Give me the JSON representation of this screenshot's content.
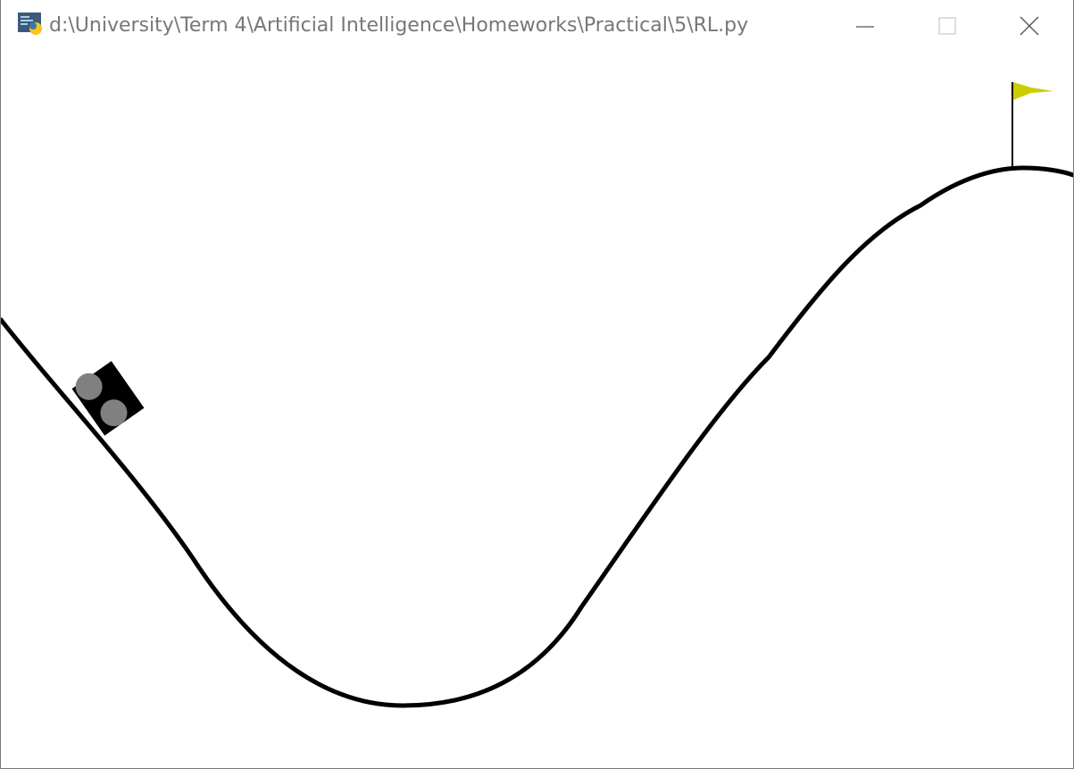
{
  "window": {
    "title": "d:\\University\\Term 4\\Artificial Intelligence\\Homeworks\\Practical\\5\\RL.py",
    "app_icon": "python-icon",
    "controls": {
      "minimize_icon": "minimize-icon",
      "maximize_icon": "maximize-icon",
      "close_icon": "close-icon"
    }
  },
  "scene": {
    "environment": "mountain-car",
    "track_color": "#000000",
    "car_color": "#000000",
    "wheel_color": "#808080",
    "flag_color": "#cccc00",
    "flagpole_color": "#000000"
  }
}
